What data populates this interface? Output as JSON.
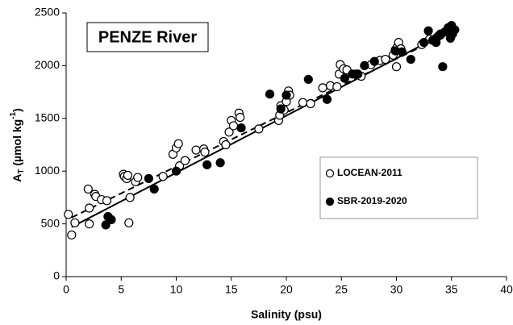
{
  "chart_data": {
    "type": "scatter",
    "title": "PENZE River",
    "x_label": "Salinity (psu)",
    "y_label_parts": [
      "A",
      "T",
      " (µmol kg",
      "-1",
      ")"
    ],
    "xlim": [
      0,
      40
    ],
    "xticks": [
      0,
      5,
      10,
      15,
      20,
      25,
      30,
      35,
      40
    ],
    "ylim": [
      0,
      2500
    ],
    "yticks": [
      0,
      500,
      1000,
      1500,
      2000,
      2500
    ],
    "grid": false,
    "legend_position": "right",
    "series": [
      {
        "name": "LOCEAN-2011",
        "color": "#000000",
        "marker": "open",
        "line_style": "dashed",
        "x": [
          0.2,
          0.5,
          0.8,
          2.0,
          2.1,
          2.1,
          2.6,
          2.7,
          3.2,
          3.7,
          5.2,
          5.3,
          5.5,
          5.6,
          5.7,
          5.8,
          6.3,
          6.5,
          8.8,
          9.7,
          10.0,
          10.2,
          10.3,
          10.8,
          11.8,
          12.5,
          12.6,
          14.3,
          14.5,
          14.8,
          15.0,
          15.2,
          15.7,
          15.8,
          17.5,
          19.3,
          19.4,
          19.5,
          19.8,
          20.0,
          20.2,
          20.3,
          21.5,
          22.2,
          23.3,
          24.0,
          24.6,
          24.8,
          24.9,
          25.2,
          25.5,
          26.3,
          26.8,
          27.7,
          28.5,
          29.0,
          29.7,
          29.9,
          30.0,
          30.1,
          30.2,
          30.4,
          32.3,
          33.0,
          33.6,
          34.0,
          34.5,
          34.8,
          35.0,
          35.2
        ],
        "values": [
          590,
          395,
          510,
          830,
          500,
          650,
          780,
          760,
          730,
          720,
          970,
          950,
          930,
          960,
          510,
          750,
          900,
          940,
          950,
          1160,
          1220,
          1260,
          1050,
          1100,
          1200,
          1210,
          1180,
          1280,
          1250,
          1370,
          1480,
          1430,
          1550,
          1510,
          1400,
          1480,
          1530,
          1620,
          1580,
          1660,
          1760,
          1720,
          1650,
          1640,
          1790,
          1810,
          1800,
          1920,
          2010,
          1970,
          1960,
          1920,
          1900,
          2010,
          2050,
          2060,
          2100,
          2150,
          1990,
          2180,
          2220,
          2160,
          2200,
          2250,
          2260,
          2290,
          2320,
          2350,
          2380,
          2340
        ],
        "fit_x": [
          0.5,
          35.2
        ],
        "fit_y": [
          560,
          2330
        ]
      },
      {
        "name": "SBR-2019-2020",
        "color": "#000000",
        "marker": "filled",
        "line_style": "solid",
        "x": [
          3.6,
          3.8,
          4.1,
          7.5,
          8.0,
          10.0,
          12.8,
          14.0,
          15.9,
          18.5,
          19.5,
          20.0,
          22.0,
          23.7,
          25.3,
          26.0,
          26.5,
          27.1,
          28.0,
          29.9,
          30.5,
          31.3,
          32.5,
          32.9,
          33.3,
          33.6,
          33.8,
          34.0,
          34.2,
          34.4,
          34.7,
          34.9,
          35.0,
          35.1,
          35.3
        ],
        "values": [
          490,
          570,
          540,
          930,
          830,
          1000,
          1060,
          1080,
          1410,
          1730,
          1590,
          1720,
          1870,
          1680,
          1880,
          1920,
          1920,
          2000,
          2040,
          2140,
          2130,
          2060,
          2220,
          2330,
          2240,
          2220,
          2280,
          2300,
          1990,
          2320,
          2360,
          2260,
          2380,
          2300,
          2340
        ],
        "fit_x": [
          0.5,
          35.2
        ],
        "fit_y": [
          470,
          2350
        ]
      }
    ]
  }
}
